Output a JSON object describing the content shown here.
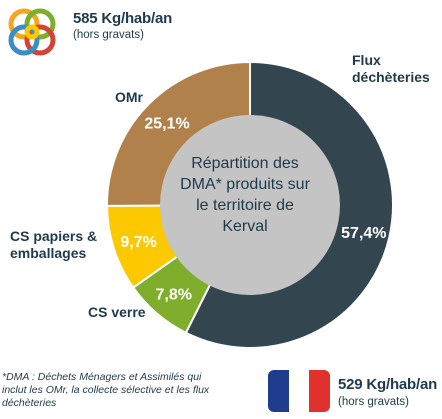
{
  "header_stat": {
    "value": "585 Kg/hab/an",
    "note": "(hors gravats)"
  },
  "footer_stat": {
    "value": "529 Kg/hab/an",
    "note": "(hors gravats)"
  },
  "footnote": "*DMA : Déchets Ménagers et Assimilés qui inclut les OMr, la collecte sélective et les flux déchèteries",
  "chart_data": {
    "type": "pie",
    "title": "Répartition des DMA* produits sur le territoire de Kerval",
    "categories": [
      "Flux déchèteries",
      "CS verre",
      "CS papiers & emballages",
      "OMr"
    ],
    "values": [
      57.4,
      7.8,
      9.7,
      25.1
    ],
    "value_labels": [
      "57,4%",
      "7,8%",
      "9,7%",
      "25,1%"
    ],
    "colors": [
      "#33464f",
      "#7fae2d",
      "#fcc800",
      "#b1814c"
    ],
    "center_color": "#c4c4c4",
    "unit": "%"
  },
  "icons": {
    "logo": "knot-logo-icon",
    "flag": "french-flag-icon"
  }
}
